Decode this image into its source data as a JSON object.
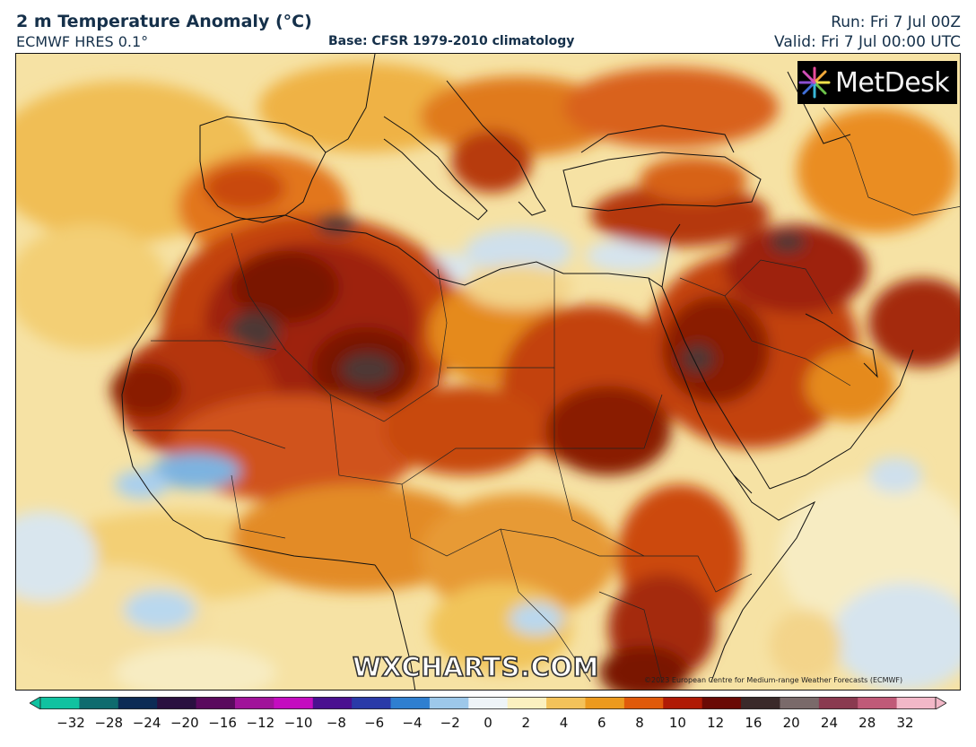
{
  "header": {
    "title": "2 m Temperature Anomaly (°C)",
    "model": "ECMWF HRES 0.1°",
    "base": "Base: CFSR 1979-2010 climatology",
    "run": "Run: Fri 7 Jul 00Z",
    "valid": "Valid: Fri 7 Jul 00:00 UTC"
  },
  "logo": {
    "text": "MetDesk",
    "icon": "metdesk-starburst-icon"
  },
  "watermark": "WXCHARTS.COM",
  "credit": "©2023 European Centre for Medium-range Weather Forecasts (ECMWF)",
  "colorbar": {
    "ticks": [
      "−32",
      "−28",
      "−24",
      "−20",
      "−16",
      "−12",
      "−10",
      "−8",
      "−6",
      "−4",
      "−2",
      "0",
      "2",
      "4",
      "6",
      "8",
      "10",
      "12",
      "16",
      "20",
      "24",
      "28",
      "32"
    ],
    "colors": [
      "#10c2a0",
      "#0f6b6e",
      "#0c2b55",
      "#2a1040",
      "#5a0a5e",
      "#a0139a",
      "#c40cc0",
      "#4a1090",
      "#2a3aa8",
      "#2f7fd0",
      "#9dc8ea",
      "#eef4f8",
      "#fbf0c0",
      "#f3c25a",
      "#ec9a1e",
      "#e05a0a",
      "#b01a05",
      "#6a0a05",
      "#3a2a2a",
      "#7a6a6a",
      "#8a3a50",
      "#c05a78",
      "#f2b8c8"
    ]
  },
  "map": {
    "region": "North Africa, Mediterranean and Middle East",
    "palette": {
      "sea_neutral": "#f7e7b0",
      "cool": "#a9d2ee",
      "mild": "#f1c45a",
      "warm": "#ea8a1c",
      "hot": "#c8400a",
      "very_hot": "#8a1405",
      "extreme": "#4a3535"
    }
  }
}
